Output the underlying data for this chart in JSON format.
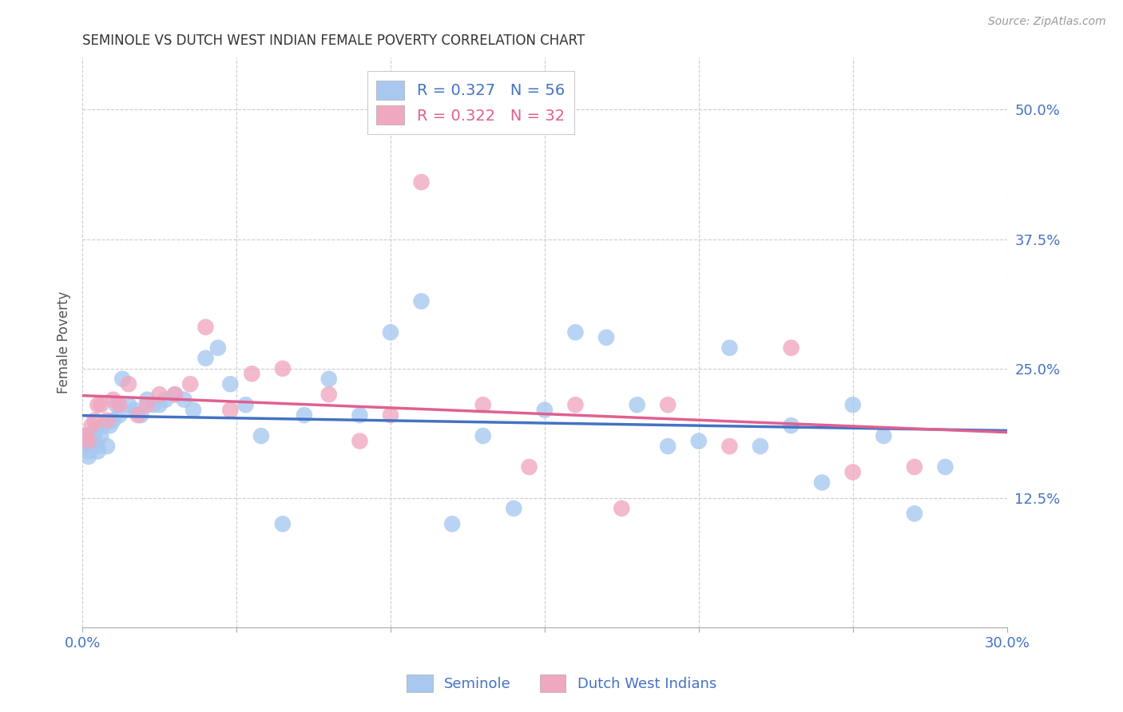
{
  "title": "SEMINOLE VS DUTCH WEST INDIAN FEMALE POVERTY CORRELATION CHART",
  "source": "Source: ZipAtlas.com",
  "ylabel": "Female Poverty",
  "xlim": [
    0.0,
    0.3
  ],
  "ylim": [
    0.0,
    0.55
  ],
  "yticks": [
    0.125,
    0.25,
    0.375,
    0.5
  ],
  "ytick_labels": [
    "12.5%",
    "25.0%",
    "37.5%",
    "50.0%"
  ],
  "xticks": [
    0.0,
    0.05,
    0.1,
    0.15,
    0.2,
    0.25,
    0.3
  ],
  "xtick_labels": [
    "0.0%",
    "",
    "",
    "",
    "",
    "",
    "30.0%"
  ],
  "seminole_color": "#a8c8f0",
  "dutch_color": "#f0a8c0",
  "seminole_line_color": "#4472c4",
  "dutch_line_color": "#e06090",
  "background_color": "#ffffff",
  "grid_color": "#cccccc",
  "title_color": "#333333",
  "axis_label_color": "#555555",
  "tick_label_color": "#4472c4",
  "legend_r1": "R = 0.327",
  "legend_n1": "N = 56",
  "legend_r2": "R = 0.322",
  "legend_n2": "N = 32",
  "seminole_x": [
    0.001,
    0.001,
    0.002,
    0.002,
    0.003,
    0.003,
    0.004,
    0.004,
    0.005,
    0.005,
    0.006,
    0.007,
    0.008,
    0.009,
    0.01,
    0.011,
    0.012,
    0.013,
    0.015,
    0.017,
    0.019,
    0.021,
    0.023,
    0.025,
    0.027,
    0.03,
    0.033,
    0.036,
    0.04,
    0.044,
    0.048,
    0.053,
    0.058,
    0.065,
    0.072,
    0.08,
    0.09,
    0.1,
    0.11,
    0.12,
    0.13,
    0.14,
    0.15,
    0.16,
    0.17,
    0.18,
    0.19,
    0.2,
    0.21,
    0.22,
    0.23,
    0.24,
    0.25,
    0.26,
    0.27,
    0.28
  ],
  "seminole_y": [
    0.185,
    0.175,
    0.17,
    0.165,
    0.175,
    0.18,
    0.185,
    0.19,
    0.175,
    0.17,
    0.185,
    0.195,
    0.175,
    0.195,
    0.2,
    0.215,
    0.205,
    0.24,
    0.215,
    0.21,
    0.205,
    0.22,
    0.215,
    0.215,
    0.22,
    0.225,
    0.22,
    0.21,
    0.26,
    0.27,
    0.235,
    0.215,
    0.185,
    0.1,
    0.205,
    0.24,
    0.205,
    0.285,
    0.315,
    0.1,
    0.185,
    0.115,
    0.21,
    0.285,
    0.28,
    0.215,
    0.175,
    0.18,
    0.27,
    0.175,
    0.195,
    0.14,
    0.215,
    0.185,
    0.11,
    0.155
  ],
  "dutch_x": [
    0.001,
    0.002,
    0.003,
    0.004,
    0.005,
    0.006,
    0.008,
    0.01,
    0.012,
    0.015,
    0.018,
    0.021,
    0.025,
    0.03,
    0.035,
    0.04,
    0.048,
    0.055,
    0.065,
    0.08,
    0.09,
    0.1,
    0.11,
    0.13,
    0.145,
    0.16,
    0.175,
    0.19,
    0.21,
    0.23,
    0.25,
    0.27
  ],
  "dutch_y": [
    0.185,
    0.18,
    0.195,
    0.2,
    0.215,
    0.215,
    0.2,
    0.22,
    0.215,
    0.235,
    0.205,
    0.215,
    0.225,
    0.225,
    0.235,
    0.29,
    0.21,
    0.245,
    0.25,
    0.225,
    0.18,
    0.205,
    0.43,
    0.215,
    0.155,
    0.215,
    0.115,
    0.215,
    0.175,
    0.27,
    0.15,
    0.155
  ]
}
